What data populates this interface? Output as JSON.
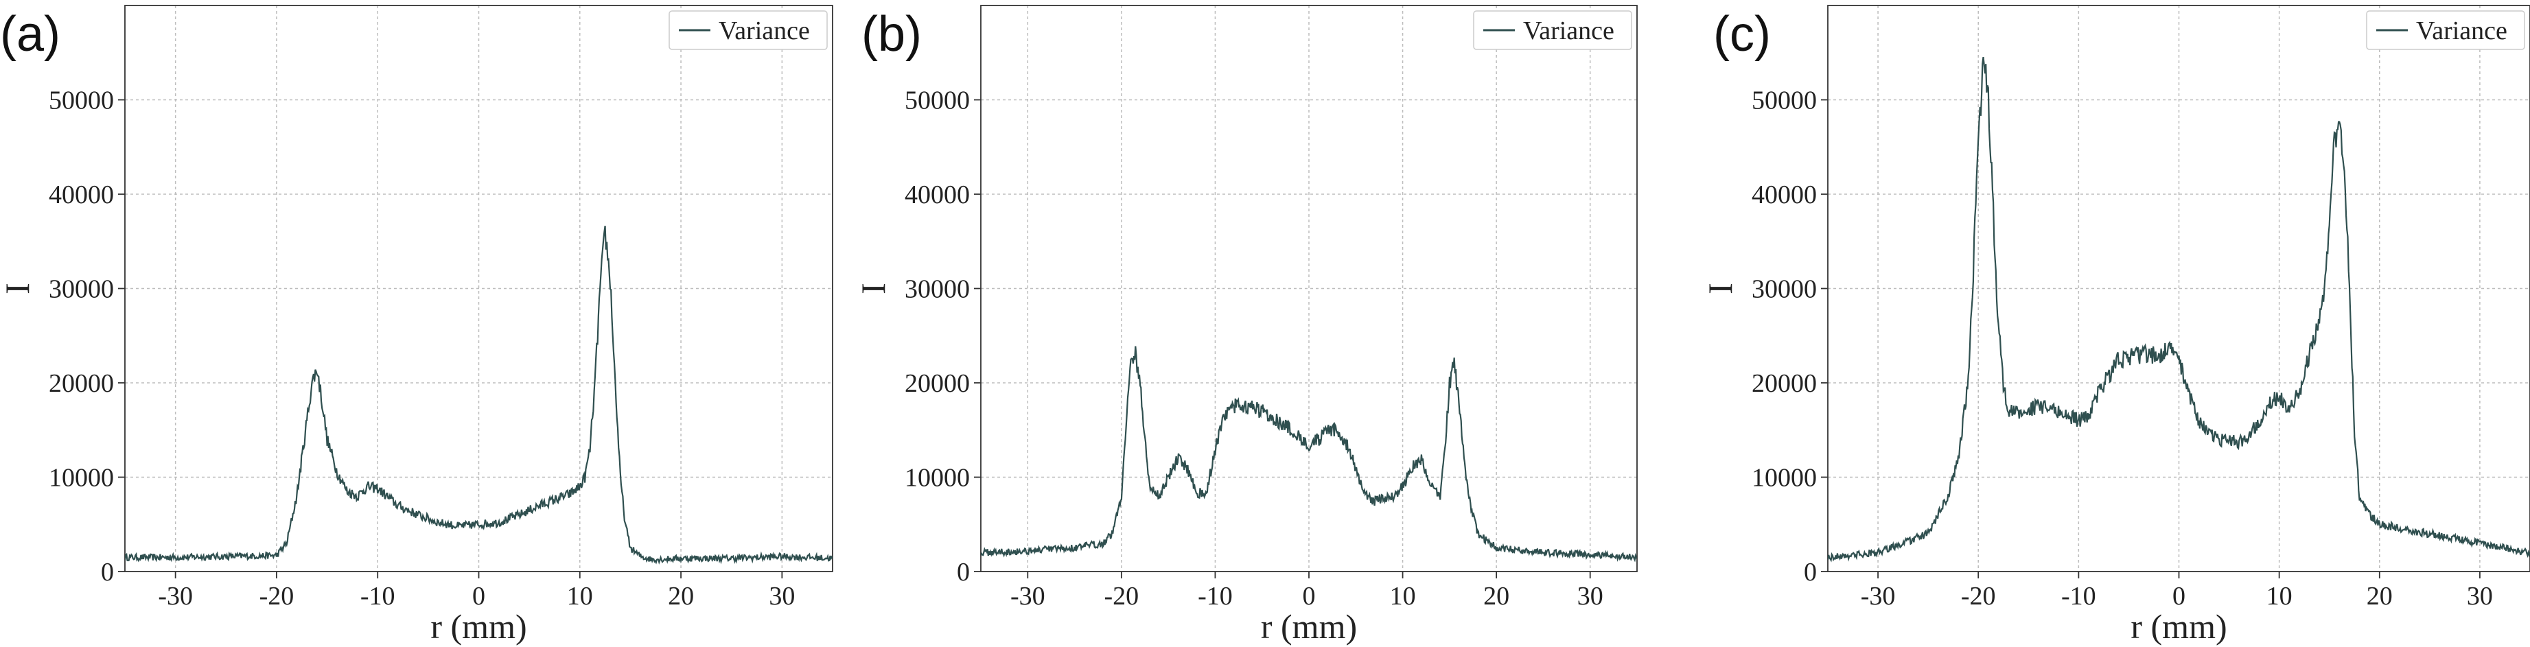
{
  "chart_data": [
    {
      "type": "line",
      "panel": "(a)",
      "xlabel": "r (mm)",
      "ylabel": "I",
      "xlim": [
        -35,
        35
      ],
      "ylim": [
        0,
        60000
      ],
      "xticks": [
        -30,
        -20,
        -10,
        0,
        10,
        20,
        30
      ],
      "yticks": [
        0,
        10000,
        20000,
        30000,
        40000,
        50000
      ],
      "grid": true,
      "legend": "top-right",
      "series": [
        {
          "name": "Variance",
          "color": "#2f4f4f",
          "x": [
            -35,
            -30,
            -25,
            -20,
            -19,
            -18,
            -17,
            -16.5,
            -16,
            -15.5,
            -15,
            -14,
            -13,
            -12,
            -11,
            -10,
            -8,
            -6,
            -4,
            -2,
            0,
            2,
            4,
            6,
            8,
            9,
            10,
            10.5,
            11,
            11.5,
            12,
            12.5,
            13,
            13.5,
            14,
            14.5,
            15,
            16,
            17,
            18,
            20,
            25,
            30,
            35
          ],
          "y": [
            1500,
            1500,
            1600,
            1700,
            3000,
            8000,
            16000,
            20000,
            21500,
            18000,
            14000,
            10500,
            8500,
            8000,
            9000,
            8800,
            7000,
            6000,
            5200,
            4800,
            5000,
            5200,
            6000,
            7000,
            7800,
            8200,
            9000,
            10000,
            13000,
            20000,
            30000,
            36000,
            31000,
            20000,
            10000,
            5000,
            2500,
            1600,
            1300,
            1300,
            1400,
            1400,
            1600,
            1400
          ]
        }
      ]
    },
    {
      "type": "line",
      "panel": "(b)",
      "xlabel": "r (mm)",
      "ylabel": "I",
      "xlim": [
        -35,
        35
      ],
      "ylim": [
        0,
        60000
      ],
      "xticks": [
        -30,
        -20,
        -10,
        0,
        10,
        20,
        30
      ],
      "yticks": [
        0,
        10000,
        20000,
        30000,
        40000,
        50000
      ],
      "grid": true,
      "legend": "top-right",
      "series": [
        {
          "name": "Variance",
          "color": "#2f4f4f",
          "x": [
            -35,
            -30,
            -25,
            -22,
            -21,
            -20,
            -19.5,
            -19,
            -18.5,
            -18,
            -17.5,
            -17,
            -16,
            -15,
            -14,
            -13,
            -12,
            -11,
            -10,
            -9,
            -8,
            -7,
            -6,
            -5,
            -4,
            -2,
            0,
            1,
            2,
            3,
            4,
            5,
            6,
            7,
            8,
            9,
            10,
            11,
            12,
            13,
            14,
            14.5,
            15,
            15.5,
            16,
            17,
            18,
            20,
            25,
            30,
            35
          ],
          "y": [
            2000,
            2200,
            2500,
            3000,
            4000,
            8000,
            16000,
            22000,
            23000,
            20000,
            14000,
            9000,
            8000,
            10000,
            12000,
            11000,
            8500,
            8000,
            13000,
            16500,
            17500,
            17600,
            17300,
            17000,
            16500,
            15000,
            13500,
            14000,
            14800,
            15000,
            13500,
            11000,
            8000,
            7500,
            7800,
            8000,
            9000,
            11000,
            12000,
            9000,
            8000,
            13000,
            20000,
            22000,
            18000,
            8000,
            4000,
            2500,
            2000,
            1800,
            1500
          ]
        }
      ]
    },
    {
      "type": "line",
      "panel": "(c)",
      "xlabel": "r (mm)",
      "ylabel": "I",
      "xlim": [
        -35,
        35
      ],
      "ylim": [
        0,
        60000
      ],
      "xticks": [
        -30,
        -20,
        -10,
        0,
        10,
        20,
        30
      ],
      "yticks": [
        0,
        10000,
        20000,
        30000,
        40000,
        50000
      ],
      "grid": true,
      "legend": "top-right",
      "series": [
        {
          "name": "Variance",
          "color": "#2f4f4f",
          "x": [
            -35,
            -30,
            -25,
            -23,
            -22,
            -21,
            -20.5,
            -20,
            -19.5,
            -19,
            -18.5,
            -18,
            -17.5,
            -17,
            -16,
            -14,
            -12,
            -10,
            -9,
            -8,
            -6,
            -4,
            -2,
            -1,
            0,
            1,
            2,
            3,
            4,
            5,
            6,
            7,
            8,
            9,
            10,
            11,
            12,
            13,
            14,
            14.5,
            15,
            15.5,
            16,
            16.5,
            17,
            17.5,
            18,
            19,
            20,
            25,
            30,
            35
          ],
          "y": [
            1500,
            2000,
            4000,
            8000,
            12000,
            20000,
            32000,
            46000,
            54000,
            50000,
            38000,
            26000,
            20000,
            17000,
            16800,
            17500,
            17000,
            16000,
            16500,
            19000,
            22500,
            23000,
            23000,
            23500,
            22500,
            19000,
            16000,
            14500,
            14000,
            13800,
            13700,
            14500,
            16000,
            18000,
            18500,
            17000,
            19000,
            23000,
            27000,
            30000,
            36000,
            46000,
            48000,
            43000,
            30000,
            15000,
            8000,
            6000,
            5000,
            4000,
            3000,
            2000
          ]
        }
      ]
    }
  ]
}
